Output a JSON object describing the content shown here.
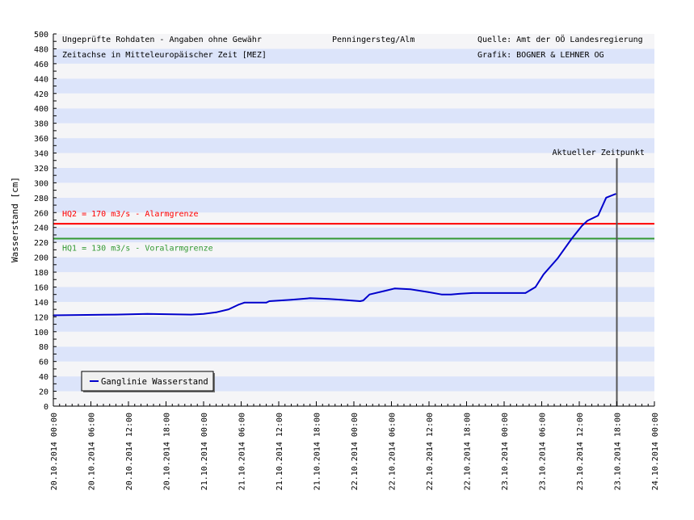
{
  "chart_data": {
    "type": "line",
    "title": "Penningersteg/Alm",
    "header": {
      "left_line1": "Ungeprüfte Rohdaten - Angaben ohne Gewähr",
      "left_line2": "Zeitachse in Mitteleuropäischer Zeit [MEZ]",
      "center": "Penningersteg/Alm",
      "right_line1": "Quelle: Amt der OÖ Landesregierung",
      "right_line2": "Grafik: BOGNER & LEHNER OG"
    },
    "ylabel": "Wasserstand [cm]",
    "xlabel": "",
    "ylim": [
      0,
      500
    ],
    "y_ticks": [
      0,
      20,
      40,
      60,
      80,
      100,
      120,
      140,
      160,
      180,
      200,
      220,
      240,
      260,
      280,
      300,
      320,
      340,
      360,
      380,
      400,
      420,
      440,
      460,
      480,
      500
    ],
    "x_unit": "hours since 20.10.2014 00:00",
    "xlim": [
      0,
      96
    ],
    "x_tick_labels": [
      "20.10.2014 00:00",
      "20.10.2014 06:00",
      "20.10.2014 12:00",
      "20.10.2014 18:00",
      "21.10.2014 00:00",
      "21.10.2014 06:00",
      "21.10.2014 12:00",
      "21.10.2014 18:00",
      "22.10.2014 00:00",
      "22.10.2014 06:00",
      "22.10.2014 12:00",
      "22.10.2014 18:00",
      "23.10.2014 00:00",
      "23.10.2014 06:00",
      "23.10.2014 12:00",
      "23.10.2014 18:00",
      "24.10.2014 00:00"
    ],
    "grid": "horizontal bands every 20 cm",
    "thresholds": [
      {
        "label": "HQ2 = 170 m3/s - Alarmgrenze",
        "value": 245,
        "color": "#ff0000"
      },
      {
        "label": "HQ1 = 130 m3/s - Voralarmgrenze",
        "value": 225,
        "color": "#339933"
      }
    ],
    "current_time": {
      "label": "Aktueller Zeitpunkt",
      "x": 90
    },
    "legend": {
      "position": "bottom-left",
      "entries": [
        "Ganglinie Wasserstand"
      ]
    },
    "series": [
      {
        "name": "Ganglinie Wasserstand",
        "color": "#0000cc",
        "x": [
          0,
          10,
          15,
          22,
          24,
          26,
          28,
          29.5,
          30.5,
          34,
          34.5,
          38,
          41,
          44,
          46,
          49,
          49.5,
          50.5,
          53,
          54.5,
          57,
          60,
          62,
          63.5,
          65,
          67,
          75.4,
          77,
          78.3,
          80.5,
          82.8,
          84.4,
          85.3,
          87,
          88.3,
          89.8
        ],
        "y": [
          122,
          123,
          124,
          123,
          124,
          126,
          130,
          136,
          139,
          139,
          141,
          143,
          145,
          144,
          143,
          141,
          142,
          150,
          155,
          158,
          157,
          153,
          150,
          150,
          151,
          152,
          152,
          160,
          177,
          198,
          225,
          242,
          249,
          256,
          280,
          285
        ]
      }
    ]
  }
}
